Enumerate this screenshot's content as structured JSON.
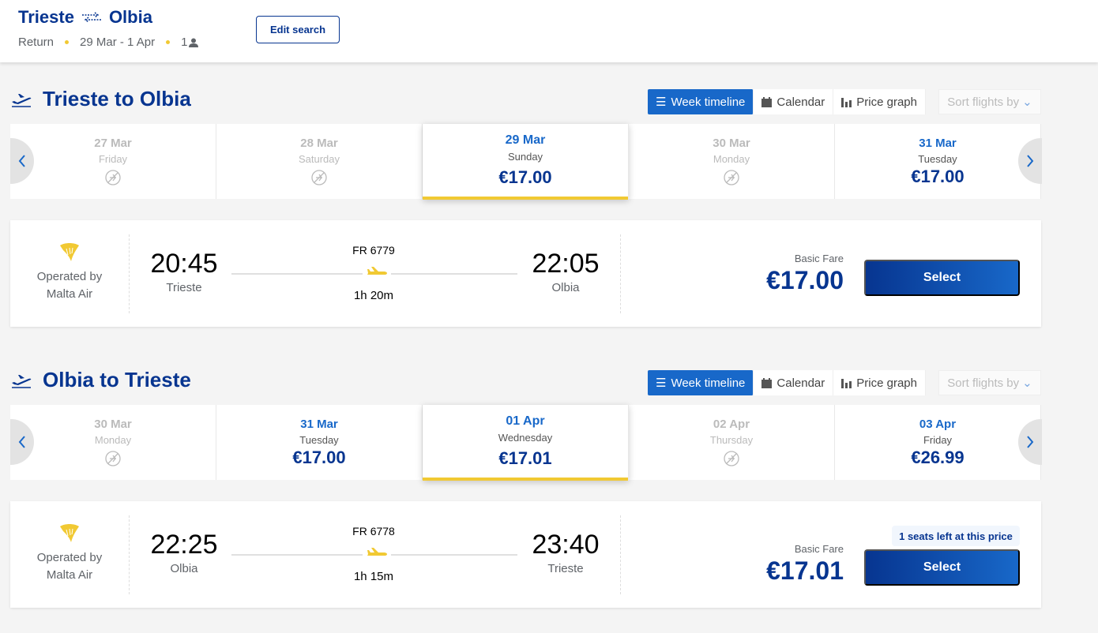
{
  "header": {
    "origin": "Trieste",
    "destination": "Olbia",
    "trip_type": "Return",
    "dates": "29 Mar - 1 Apr",
    "passengers": "1",
    "edit_label": "Edit search"
  },
  "colors": {
    "brand": "#073590",
    "accent": "#1868c9",
    "yellow": "#f1c933"
  },
  "views": {
    "week": "Week timeline",
    "calendar": "Calendar",
    "graph": "Price graph",
    "sort": "Sort flights by"
  },
  "sections": [
    {
      "title": "Trieste to Olbia",
      "dates": [
        {
          "date": "27 Mar",
          "day": "Friday",
          "price": null,
          "available": false
        },
        {
          "date": "28 Mar",
          "day": "Saturday",
          "price": null,
          "available": false
        },
        {
          "date": "29 Mar",
          "day": "Sunday",
          "price": "€17.00",
          "available": true,
          "selected": true
        },
        {
          "date": "30 Mar",
          "day": "Monday",
          "price": null,
          "available": false
        },
        {
          "date": "31 Mar",
          "day": "Tuesday",
          "price": "€17.00",
          "available": true
        }
      ],
      "flight": {
        "operator_line1": "Operated by",
        "operator_line2": "Malta Air",
        "dep_time": "20:45",
        "dep_city": "Trieste",
        "flight_no": "FR 6779",
        "duration": "1h 20m",
        "arr_time": "22:05",
        "arr_city": "Olbia",
        "fare_label": "Basic Fare",
        "price": "€17.00",
        "select_label": "Select",
        "seats_note": null
      }
    },
    {
      "title": "Olbia to Trieste",
      "dates": [
        {
          "date": "30 Mar",
          "day": "Monday",
          "price": null,
          "available": false
        },
        {
          "date": "31 Mar",
          "day": "Tuesday",
          "price": "€17.00",
          "available": true
        },
        {
          "date": "01 Apr",
          "day": "Wednesday",
          "price": "€17.01",
          "available": true,
          "selected": true
        },
        {
          "date": "02 Apr",
          "day": "Thursday",
          "price": null,
          "available": false
        },
        {
          "date": "03 Apr",
          "day": "Friday",
          "price": "€26.99",
          "available": true
        }
      ],
      "flight": {
        "operator_line1": "Operated by",
        "operator_line2": "Malta Air",
        "dep_time": "22:25",
        "dep_city": "Olbia",
        "flight_no": "FR 6778",
        "duration": "1h 15m",
        "arr_time": "23:40",
        "arr_city": "Trieste",
        "fare_label": "Basic Fare",
        "price": "€17.01",
        "select_label": "Select",
        "seats_note": "1 seats left at this price"
      }
    }
  ]
}
